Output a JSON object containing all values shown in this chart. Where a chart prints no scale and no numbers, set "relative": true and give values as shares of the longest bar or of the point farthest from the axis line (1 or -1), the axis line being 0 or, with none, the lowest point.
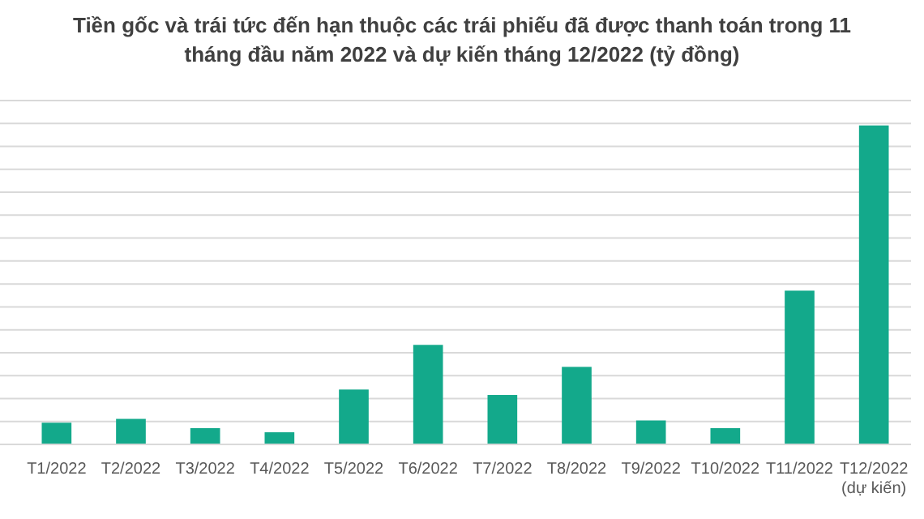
{
  "chart_data": {
    "type": "bar",
    "title": "Tiền gốc và trái tức đến hạn thuộc các trái phiếu đã được thanh toán trong 11 tháng đầu năm 2022 và dự kiến tháng 12/2022 (tỷ đồng)",
    "categories": [
      "T1/2022",
      "T2/2022",
      "T3/2022",
      "T4/2022",
      "T5/2022",
      "T6/2022",
      "T7/2022",
      "T8/2022",
      "T9/2022",
      "T10/2022",
      "T11/2022",
      "T12/2022 (dự kiến)"
    ],
    "values": [
      0.068,
      0.08,
      0.051,
      0.038,
      0.172,
      0.312,
      0.155,
      0.243,
      0.075,
      0.051,
      0.482,
      1
    ],
    "color": "#13a98b",
    "relative": true,
    "grid": "y"
  }
}
